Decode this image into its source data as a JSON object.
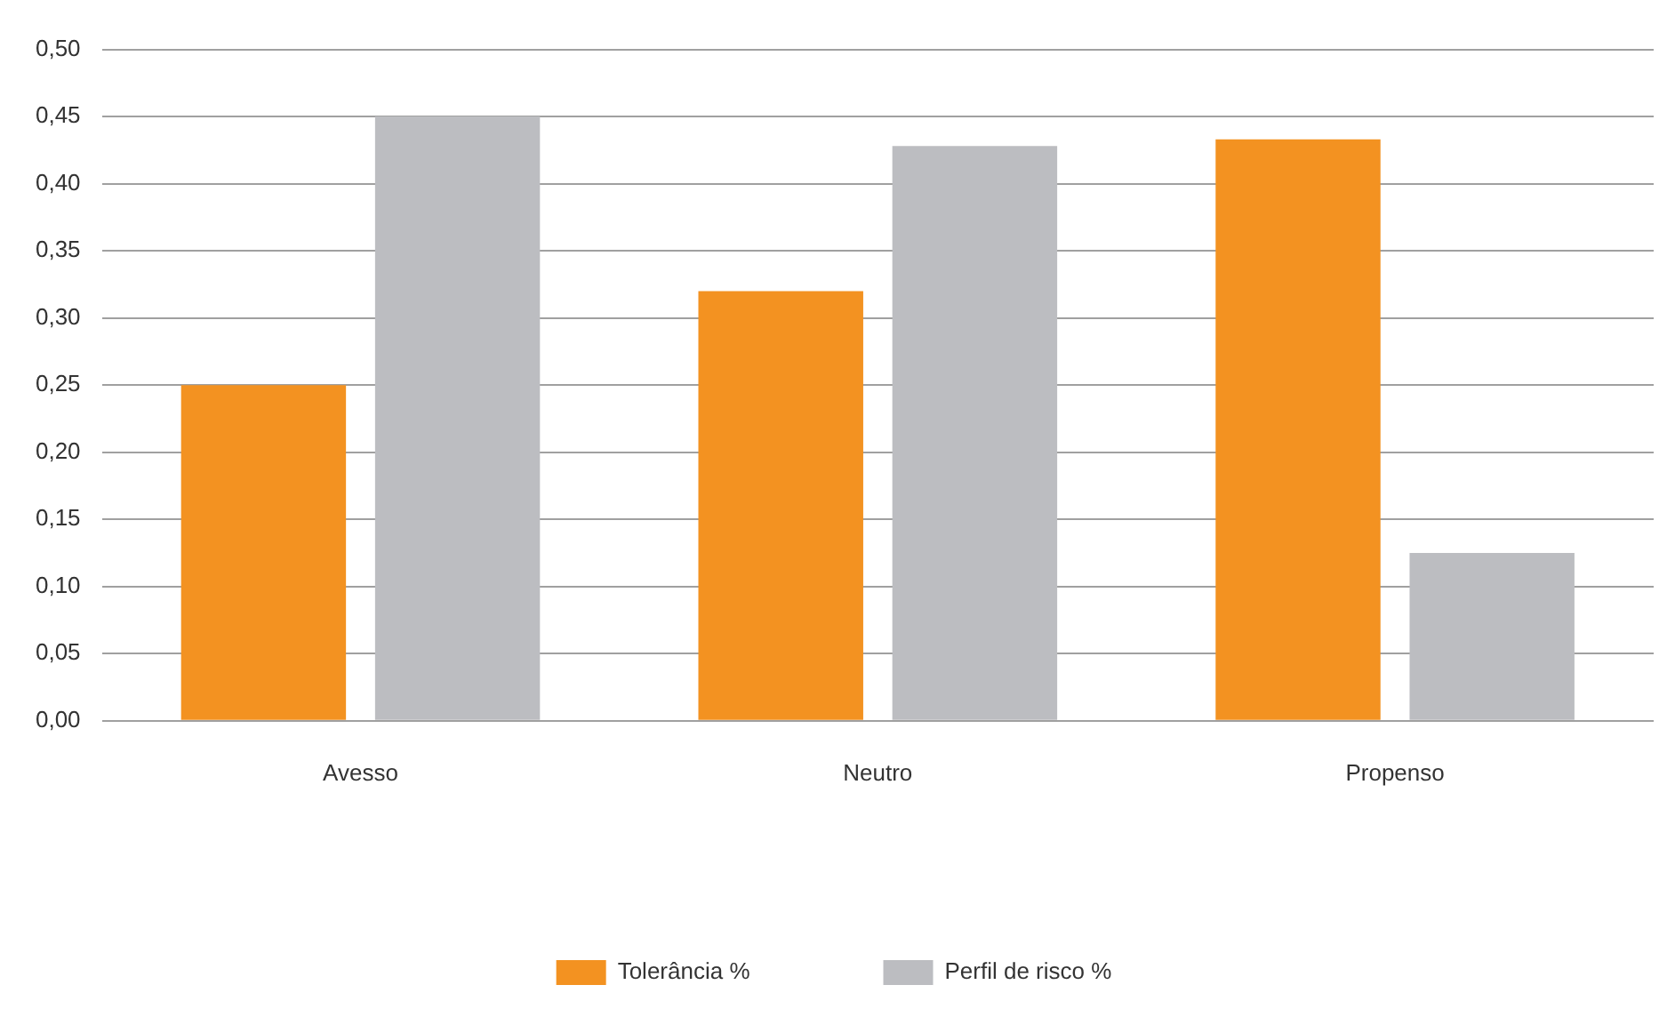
{
  "chart_data": {
    "type": "bar",
    "categories": [
      "Avesso",
      "Neutro",
      "Propenso"
    ],
    "series": [
      {
        "name": "Tolerância %",
        "color": "#f39221",
        "values": [
          0.25,
          0.32,
          0.433
        ]
      },
      {
        "name": "Perfil de risco %",
        "color": "#bcbdc1",
        "values": [
          0.45,
          0.428,
          0.125
        ]
      }
    ],
    "ylim": [
      0,
      0.5
    ],
    "yticks": [
      {
        "value": 0,
        "label": "0,00"
      },
      {
        "value": 0.05,
        "label": "0,05"
      },
      {
        "value": 0.1,
        "label": "0,10"
      },
      {
        "value": 0.15,
        "label": "0,15"
      },
      {
        "value": 0.2,
        "label": "0,20"
      },
      {
        "value": 0.25,
        "label": "0,25"
      },
      {
        "value": 0.3,
        "label": "0,30"
      },
      {
        "value": 0.35,
        "label": "0,35"
      },
      {
        "value": 0.4,
        "label": "0,40"
      },
      {
        "value": 0.45,
        "label": "0,45"
      },
      {
        "value": 0.5,
        "label": "0,50"
      }
    ],
    "grid": "y",
    "legend": "bottom"
  }
}
